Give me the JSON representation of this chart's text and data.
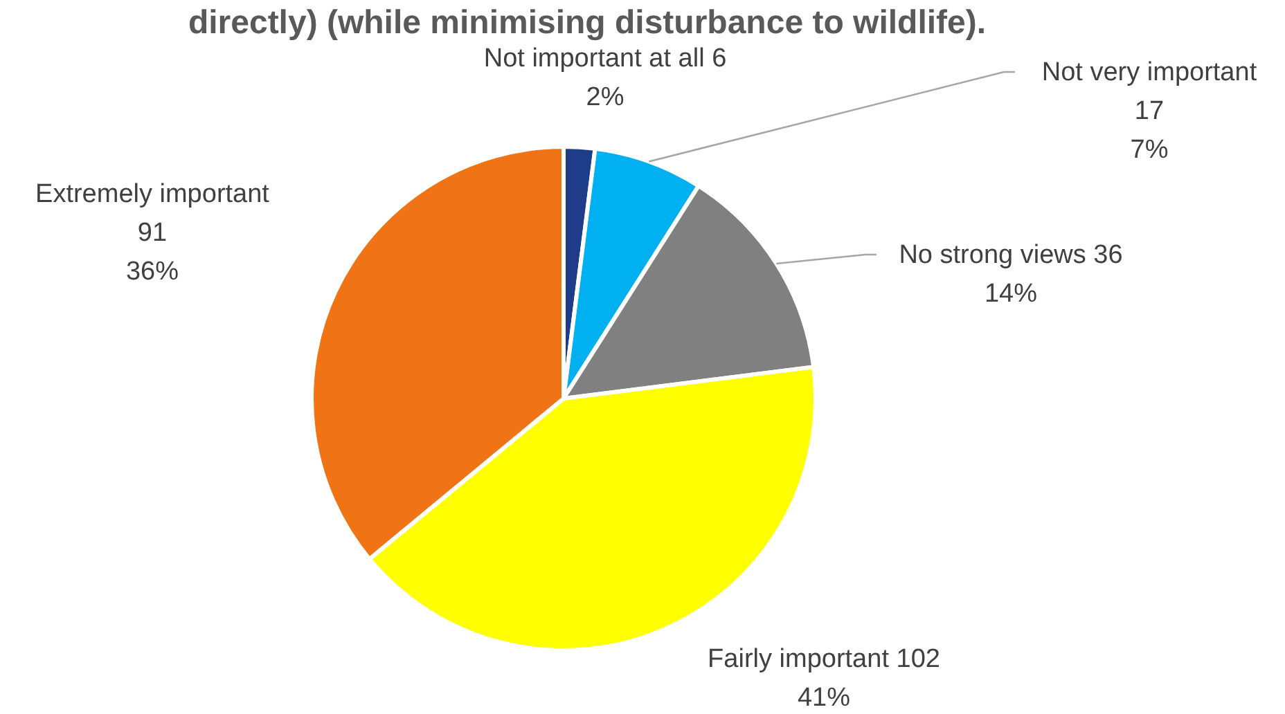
{
  "chart_data": {
    "type": "pie",
    "title": "directly) (while minimising disturbance to wildlife).",
    "categories": [
      "Not important at all 6",
      "Not very important 17",
      "No strong views 36",
      "Fairly important 102",
      "Extremely important 91"
    ],
    "values": [
      2,
      7,
      14,
      41,
      36
    ],
    "value_labels": [
      "2%",
      "7%",
      "14%",
      "41%",
      "36%"
    ],
    "colors": [
      "#1f3c88",
      "#00b0f0",
      "#808080",
      "#ffff00",
      "#f07415"
    ]
  }
}
